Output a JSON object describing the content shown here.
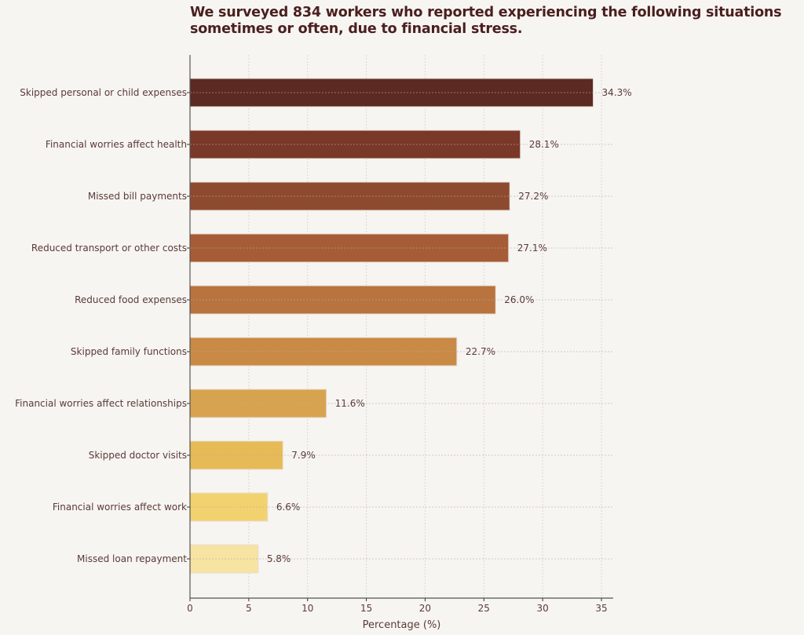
{
  "chart_data": {
    "type": "bar",
    "orientation": "horizontal",
    "title": "We surveyed 834 workers who reported experiencing the following situations sometimes or often, due to financial stress.",
    "xlabel": "Percentage (%)",
    "ylabel": "",
    "xlim": [
      0,
      36
    ],
    "xticks": [
      0,
      5,
      10,
      15,
      20,
      25,
      30,
      35
    ],
    "grid": true,
    "categories": [
      "Skipped personal or child expenses",
      "Financial worries affect health",
      "Missed bill payments",
      "Reduced transport or other costs",
      "Reduced food expenses",
      "Skipped family functions",
      "Financial worries affect relationships",
      "Skipped doctor visits",
      "Financial worries affect work",
      "Missed loan repayment"
    ],
    "values": [
      34.3,
      28.1,
      27.2,
      27.1,
      26.0,
      22.7,
      11.6,
      7.9,
      6.6,
      5.8
    ],
    "data_labels": [
      "34.3%",
      "28.1%",
      "27.2%",
      "27.1%",
      "26.0%",
      "22.7%",
      "11.6%",
      "7.9%",
      "6.6%",
      "5.8%"
    ],
    "colors": [
      "#5c2a22",
      "#7a3828",
      "#8e4a2e",
      "#a65c36",
      "#b8733f",
      "#c98a46",
      "#d8a34f",
      "#e6ba56",
      "#f2d26e",
      "#f7e3a2"
    ]
  }
}
